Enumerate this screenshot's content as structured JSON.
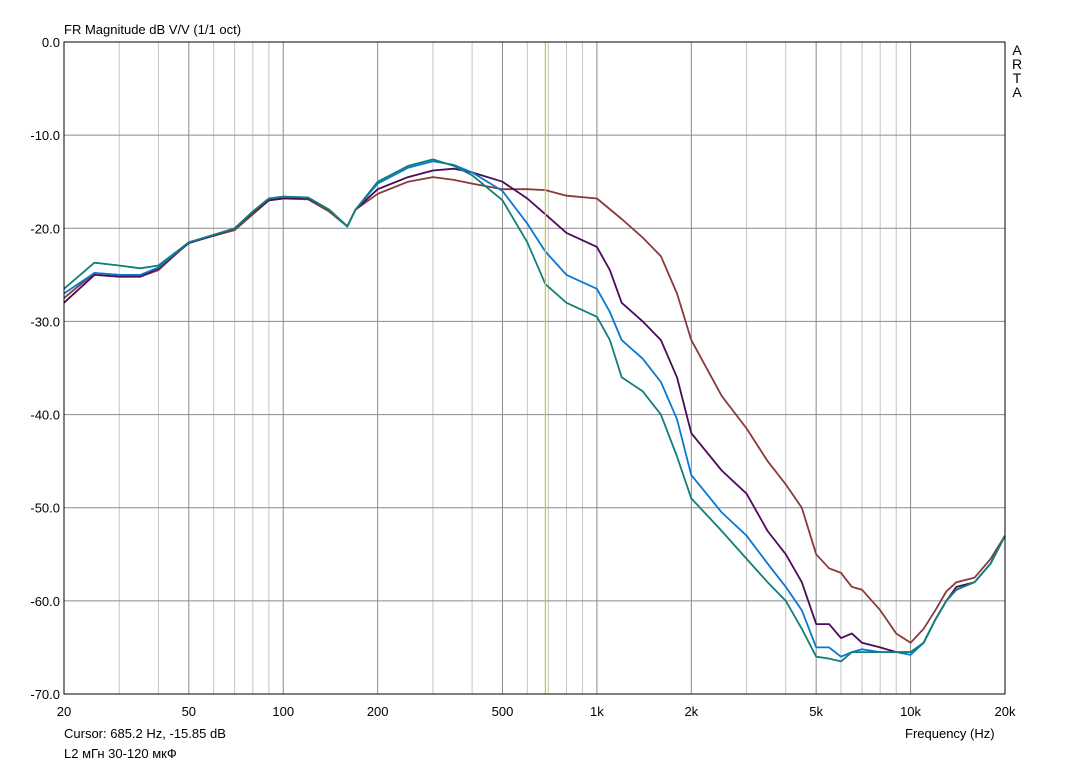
{
  "chart_data": {
    "type": "line",
    "title": "FR Magnitude dB V/V (1/1 oct)",
    "xlabel": "Frequency (Hz)",
    "ylabel": "",
    "xscale": "log",
    "xlim": [
      20,
      20000
    ],
    "ylim": [
      -70,
      0
    ],
    "grid": true,
    "watermark": [
      "A",
      "R",
      "T",
      "A"
    ],
    "x_ticks": [
      {
        "value": 20,
        "label": "20"
      },
      {
        "value": 50,
        "label": "50"
      },
      {
        "value": 100,
        "label": "100"
      },
      {
        "value": 200,
        "label": "200"
      },
      {
        "value": 500,
        "label": "500"
      },
      {
        "value": 1000,
        "label": "1k"
      },
      {
        "value": 2000,
        "label": "2k"
      },
      {
        "value": 5000,
        "label": "5k"
      },
      {
        "value": 10000,
        "label": "10k"
      },
      {
        "value": 20000,
        "label": "20k"
      }
    ],
    "y_ticks": [
      {
        "value": 0,
        "label": "0.0"
      },
      {
        "value": -10,
        "label": "-10.0"
      },
      {
        "value": -20,
        "label": "-20.0"
      },
      {
        "value": -30,
        "label": "-30.0"
      },
      {
        "value": -40,
        "label": "-40.0"
      },
      {
        "value": -50,
        "label": "-50.0"
      },
      {
        "value": -60,
        "label": "-60.0"
      },
      {
        "value": -70,
        "label": "-70.0"
      }
    ],
    "cursor": {
      "x": 685.2,
      "y": -15.85,
      "readout": "Cursor: 685.2 Hz, -15.85 dB",
      "color": "#c8c832"
    },
    "legend_label": "L2 мГн 30-120 мкФ",
    "series": [
      {
        "name": "trace-brown",
        "color": "#8b3a3a",
        "points": [
          [
            20,
            -27.5
          ],
          [
            25,
            -24.8
          ],
          [
            30,
            -25.0
          ],
          [
            35,
            -25.2
          ],
          [
            40,
            -24.5
          ],
          [
            50,
            -21.5
          ],
          [
            60,
            -20.8
          ],
          [
            70,
            -20.2
          ],
          [
            80,
            -18.5
          ],
          [
            90,
            -17.0
          ],
          [
            100,
            -16.8
          ],
          [
            120,
            -16.9
          ],
          [
            140,
            -18.2
          ],
          [
            160,
            -19.8
          ],
          [
            170,
            -18.0
          ],
          [
            200,
            -16.3
          ],
          [
            250,
            -15.0
          ],
          [
            300,
            -14.5
          ],
          [
            350,
            -14.8
          ],
          [
            400,
            -15.2
          ],
          [
            500,
            -15.8
          ],
          [
            600,
            -15.8
          ],
          [
            685,
            -15.9
          ],
          [
            800,
            -16.5
          ],
          [
            1000,
            -16.8
          ],
          [
            1200,
            -19.0
          ],
          [
            1400,
            -21.0
          ],
          [
            1600,
            -23.0
          ],
          [
            1800,
            -27.0
          ],
          [
            2000,
            -32.0
          ],
          [
            2500,
            -38.0
          ],
          [
            3000,
            -41.5
          ],
          [
            3500,
            -45.0
          ],
          [
            4000,
            -47.5
          ],
          [
            4500,
            -50.0
          ],
          [
            5000,
            -55.0
          ],
          [
            5500,
            -56.5
          ],
          [
            6000,
            -57.0
          ],
          [
            6500,
            -58.5
          ],
          [
            7000,
            -58.8
          ],
          [
            8000,
            -61.0
          ],
          [
            9000,
            -63.5
          ],
          [
            10000,
            -64.5
          ],
          [
            11000,
            -63.0
          ],
          [
            12000,
            -61.0
          ],
          [
            13000,
            -59.0
          ],
          [
            14000,
            -58.0
          ],
          [
            16000,
            -57.5
          ],
          [
            18000,
            -55.5
          ],
          [
            20000,
            -53.0
          ]
        ]
      },
      {
        "name": "trace-purple",
        "color": "#4b0a5a",
        "points": [
          [
            20,
            -28.0
          ],
          [
            25,
            -25.0
          ],
          [
            30,
            -25.2
          ],
          [
            35,
            -25.2
          ],
          [
            40,
            -24.3
          ],
          [
            50,
            -21.6
          ],
          [
            60,
            -20.8
          ],
          [
            70,
            -20.0
          ],
          [
            80,
            -18.3
          ],
          [
            90,
            -17.0
          ],
          [
            100,
            -16.8
          ],
          [
            120,
            -16.8
          ],
          [
            140,
            -18.0
          ],
          [
            160,
            -19.8
          ],
          [
            170,
            -18.0
          ],
          [
            200,
            -15.8
          ],
          [
            250,
            -14.5
          ],
          [
            300,
            -13.8
          ],
          [
            350,
            -13.6
          ],
          [
            400,
            -14.0
          ],
          [
            500,
            -15.0
          ],
          [
            600,
            -16.8
          ],
          [
            685,
            -18.5
          ],
          [
            800,
            -20.5
          ],
          [
            1000,
            -22.0
          ],
          [
            1100,
            -24.5
          ],
          [
            1200,
            -28.0
          ],
          [
            1400,
            -30.0
          ],
          [
            1600,
            -32.0
          ],
          [
            1800,
            -36.0
          ],
          [
            2000,
            -42.0
          ],
          [
            2500,
            -46.0
          ],
          [
            3000,
            -48.5
          ],
          [
            3500,
            -52.5
          ],
          [
            4000,
            -55.0
          ],
          [
            4500,
            -58.0
          ],
          [
            5000,
            -62.5
          ],
          [
            5500,
            -62.5
          ],
          [
            6000,
            -64.0
          ],
          [
            6500,
            -63.5
          ],
          [
            7000,
            -64.5
          ],
          [
            8000,
            -65.0
          ],
          [
            9000,
            -65.5
          ],
          [
            10000,
            -65.5
          ],
          [
            11000,
            -64.5
          ],
          [
            12000,
            -62.0
          ],
          [
            13000,
            -60.0
          ],
          [
            14000,
            -58.5
          ],
          [
            16000,
            -58.0
          ],
          [
            18000,
            -56.0
          ],
          [
            20000,
            -53.0
          ]
        ]
      },
      {
        "name": "trace-blue",
        "color": "#0a78d2",
        "points": [
          [
            20,
            -27.0
          ],
          [
            25,
            -24.8
          ],
          [
            30,
            -25.0
          ],
          [
            35,
            -25.0
          ],
          [
            40,
            -24.2
          ],
          [
            50,
            -21.5
          ],
          [
            60,
            -20.7
          ],
          [
            70,
            -20.0
          ],
          [
            80,
            -18.2
          ],
          [
            90,
            -16.8
          ],
          [
            100,
            -16.6
          ],
          [
            120,
            -16.7
          ],
          [
            140,
            -18.0
          ],
          [
            160,
            -19.8
          ],
          [
            170,
            -18.0
          ],
          [
            200,
            -15.2
          ],
          [
            250,
            -13.5
          ],
          [
            300,
            -12.8
          ],
          [
            350,
            -13.2
          ],
          [
            400,
            -14.0
          ],
          [
            500,
            -16.0
          ],
          [
            600,
            -19.5
          ],
          [
            685,
            -22.5
          ],
          [
            800,
            -25.0
          ],
          [
            1000,
            -26.5
          ],
          [
            1100,
            -29.0
          ],
          [
            1200,
            -32.0
          ],
          [
            1400,
            -34.0
          ],
          [
            1600,
            -36.5
          ],
          [
            1800,
            -40.5
          ],
          [
            2000,
            -46.5
          ],
          [
            2500,
            -50.5
          ],
          [
            3000,
            -53.0
          ],
          [
            3500,
            -56.0
          ],
          [
            4000,
            -58.5
          ],
          [
            4500,
            -61.0
          ],
          [
            5000,
            -65.0
          ],
          [
            5500,
            -65.0
          ],
          [
            6000,
            -66.0
          ],
          [
            6500,
            -65.5
          ],
          [
            7000,
            -65.2
          ],
          [
            8000,
            -65.5
          ],
          [
            9000,
            -65.5
          ],
          [
            10000,
            -65.8
          ],
          [
            11000,
            -64.5
          ],
          [
            12000,
            -62.0
          ],
          [
            13000,
            -60.0
          ],
          [
            14000,
            -58.8
          ],
          [
            16000,
            -58.0
          ],
          [
            18000,
            -56.0
          ],
          [
            20000,
            -53.0
          ]
        ]
      },
      {
        "name": "trace-teal",
        "color": "#108078",
        "points": [
          [
            20,
            -26.5
          ],
          [
            25,
            -23.7
          ],
          [
            30,
            -24.0
          ],
          [
            35,
            -24.3
          ],
          [
            40,
            -24.0
          ],
          [
            50,
            -21.5
          ],
          [
            60,
            -20.7
          ],
          [
            70,
            -20.0
          ],
          [
            80,
            -18.2
          ],
          [
            90,
            -16.8
          ],
          [
            100,
            -16.6
          ],
          [
            120,
            -16.7
          ],
          [
            140,
            -18.0
          ],
          [
            160,
            -19.8
          ],
          [
            170,
            -18.0
          ],
          [
            200,
            -15.0
          ],
          [
            250,
            -13.3
          ],
          [
            300,
            -12.6
          ],
          [
            350,
            -13.3
          ],
          [
            400,
            -14.3
          ],
          [
            500,
            -17.0
          ],
          [
            600,
            -21.5
          ],
          [
            685,
            -26.0
          ],
          [
            800,
            -28.0
          ],
          [
            1000,
            -29.5
          ],
          [
            1100,
            -32.0
          ],
          [
            1200,
            -36.0
          ],
          [
            1400,
            -37.5
          ],
          [
            1600,
            -40.0
          ],
          [
            1800,
            -44.5
          ],
          [
            2000,
            -49.0
          ],
          [
            2500,
            -52.5
          ],
          [
            3000,
            -55.5
          ],
          [
            3500,
            -58.0
          ],
          [
            4000,
            -60.0
          ],
          [
            4500,
            -63.0
          ],
          [
            5000,
            -66.0
          ],
          [
            5500,
            -66.2
          ],
          [
            6000,
            -66.5
          ],
          [
            6500,
            -65.5
          ],
          [
            7000,
            -65.5
          ],
          [
            8000,
            -65.5
          ],
          [
            9000,
            -65.5
          ],
          [
            10000,
            -65.5
          ],
          [
            11000,
            -64.5
          ],
          [
            12000,
            -62.0
          ],
          [
            13000,
            -60.0
          ],
          [
            14000,
            -58.8
          ],
          [
            16000,
            -58.0
          ],
          [
            18000,
            -56.0
          ],
          [
            20000,
            -53.0
          ]
        ]
      }
    ]
  }
}
